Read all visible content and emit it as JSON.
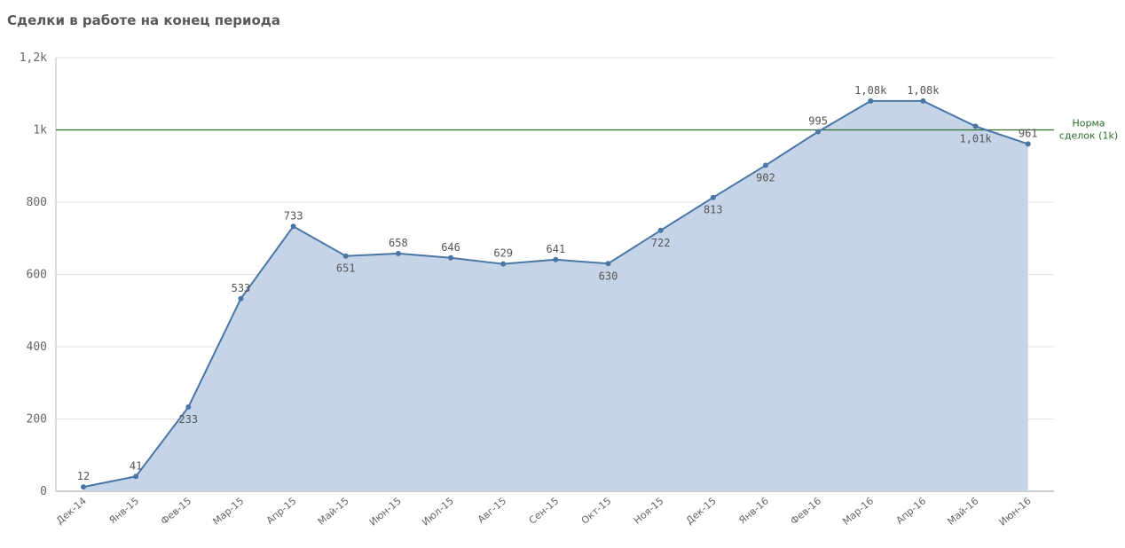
{
  "title": "Сделки в работе на конец периода",
  "chart_data": {
    "type": "area",
    "categories": [
      "Дек-14",
      "Янв-15",
      "Фев-15",
      "Мар-15",
      "Апр-15",
      "Май-15",
      "Июн-15",
      "Июл-15",
      "Авг-15",
      "Сен-15",
      "Окт-15",
      "Ноя-15",
      "Дек-15",
      "Янв-16",
      "Фев-16",
      "Мар-16",
      "Апр-16",
      "Май-16",
      "Июн-16"
    ],
    "values": [
      12,
      41,
      233,
      533,
      733,
      651,
      658,
      646,
      629,
      641,
      630,
      722,
      813,
      902,
      995,
      1080,
      1080,
      1010,
      961
    ],
    "data_labels": [
      "12",
      "41",
      "233",
      "533",
      "733",
      "651",
      "658",
      "646",
      "629",
      "641",
      "630",
      "722",
      "813",
      "902",
      "995",
      "1,08k",
      "1,08k",
      "1,01k",
      "961"
    ],
    "label_positions": [
      "above",
      "above",
      "below",
      "above",
      "above",
      "below",
      "above",
      "above",
      "above",
      "above",
      "below",
      "below",
      "below",
      "below",
      "above",
      "above",
      "above",
      "below",
      "above"
    ],
    "y_ticks": [
      {
        "value": 0,
        "label": "0"
      },
      {
        "value": 200,
        "label": "200"
      },
      {
        "value": 400,
        "label": "400"
      },
      {
        "value": 600,
        "label": "600"
      },
      {
        "value": 800,
        "label": "800"
      },
      {
        "value": 1000,
        "label": "1k"
      },
      {
        "value": 1200,
        "label": "1,2k"
      }
    ],
    "ylim": [
      0,
      1200
    ],
    "grid": true,
    "reference_line": {
      "value": 1000,
      "label_lines": [
        "Норма",
        "сделок (1k)"
      ],
      "color": "#2e6b2e"
    },
    "colors": {
      "line": "#4a76a5",
      "area": "#c5d5e7",
      "grid": "#e3e3e3"
    }
  }
}
